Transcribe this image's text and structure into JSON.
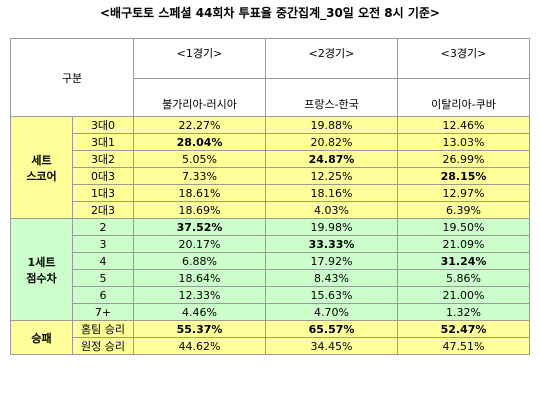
{
  "title": "<배구토토 스페셜 44회차 투표율 중간집계_30일 오전 8시 기준>",
  "table": {
    "header": {
      "corner": "구분",
      "games": [
        {
          "round": "<1경기>",
          "match": "불가리아-러시아"
        },
        {
          "round": "<2경기>",
          "match": "프랑스-한국"
        },
        {
          "round": "<3경기>",
          "match": "이탈리아-쿠바"
        }
      ]
    },
    "groups": [
      {
        "label": [
          "세트",
          "스코어"
        ],
        "color": "#ffff99",
        "rows": [
          {
            "label": "3대0",
            "cells": [
              "22.27%",
              "19.88%",
              "12.46%"
            ],
            "bold": []
          },
          {
            "label": "3대1",
            "cells": [
              "28.04%",
              "20.82%",
              "13.03%"
            ],
            "bold": [
              0
            ]
          },
          {
            "label": "3대2",
            "cells": [
              "5.05%",
              "24.87%",
              "26.99%"
            ],
            "bold": [
              1
            ]
          },
          {
            "label": "0대3",
            "cells": [
              "7.33%",
              "12.25%",
              "28.15%"
            ],
            "bold": [
              2
            ]
          },
          {
            "label": "1대3",
            "cells": [
              "18.61%",
              "18.16%",
              "12.97%"
            ],
            "bold": []
          },
          {
            "label": "2대3",
            "cells": [
              "18.69%",
              "4.03%",
              "6.39%"
            ],
            "bold": []
          }
        ]
      },
      {
        "label": [
          "1세트",
          "점수차"
        ],
        "color": "#ccffcc",
        "rows": [
          {
            "label": "2",
            "cells": [
              "37.52%",
              "19.98%",
              "19.50%"
            ],
            "bold": [
              0
            ]
          },
          {
            "label": "3",
            "cells": [
              "20.17%",
              "33.33%",
              "21.09%"
            ],
            "bold": [
              1
            ]
          },
          {
            "label": "4",
            "cells": [
              "6.88%",
              "17.92%",
              "31.24%"
            ],
            "bold": [
              2
            ]
          },
          {
            "label": "5",
            "cells": [
              "18.64%",
              "8.43%",
              "5.86%"
            ],
            "bold": []
          },
          {
            "label": "6",
            "cells": [
              "12.33%",
              "15.63%",
              "21.00%"
            ],
            "bold": []
          },
          {
            "label": "7+",
            "cells": [
              "4.46%",
              "4.70%",
              "1.32%"
            ],
            "bold": []
          }
        ]
      },
      {
        "label": [
          "승패"
        ],
        "color": "#ffff99",
        "rows": [
          {
            "label": "홈팀 승리",
            "cells": [
              "55.37%",
              "65.57%",
              "52.47%"
            ],
            "bold": [
              0,
              1,
              2
            ]
          },
          {
            "label": "원정 승리",
            "cells": [
              "44.62%",
              "34.45%",
              "47.51%"
            ],
            "bold": []
          }
        ]
      }
    ]
  }
}
